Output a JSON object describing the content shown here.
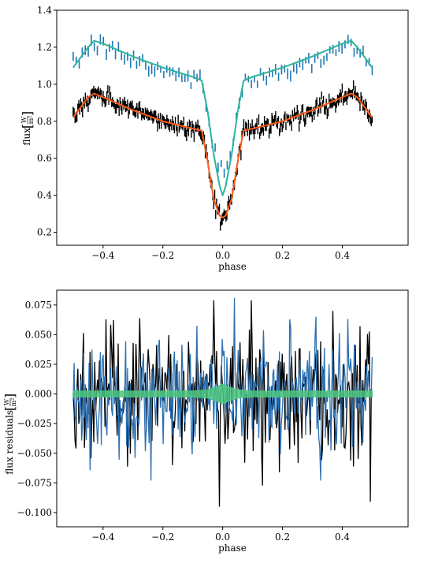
{
  "chart_data": [
    {
      "type": "line",
      "xlabel": "phase",
      "ylabel_text": "flux",
      "ylabel_unit_num": "W",
      "ylabel_unit_den": "m²",
      "xlim": [
        -0.555,
        0.62
      ],
      "ylim": [
        0.13,
        1.4
      ],
      "xticks": [
        -0.4,
        -0.2,
        0.0,
        0.2,
        0.4
      ],
      "xtick_labels": [
        "−0.4",
        "−0.2",
        "0.0",
        "0.2",
        "0.4"
      ],
      "yticks": [
        0.2,
        0.4,
        0.6,
        0.8,
        1.0,
        1.2,
        1.4
      ],
      "ytick_labels": [
        "0.2",
        "0.4",
        "0.6",
        "0.8",
        "1.0",
        "1.2",
        "1.4"
      ],
      "grid": false,
      "series": [
        {
          "role": "observed",
          "color": "#1f77b4",
          "style": "errorbar",
          "model_offset": 0.27,
          "n_points": 100,
          "noise": 0.022
        },
        {
          "role": "model",
          "color": "#2bb59b",
          "style": "line",
          "x": [
            -0.5,
            -0.45,
            -0.43,
            -0.4,
            -0.3,
            -0.2,
            -0.1,
            -0.07,
            -0.05,
            -0.03,
            -0.01,
            0.0,
            0.01,
            0.03,
            0.05,
            0.07,
            0.1,
            0.2,
            0.3,
            0.4,
            0.43,
            0.45,
            0.5
          ],
          "y": [
            1.09,
            1.2,
            1.235,
            1.22,
            1.15,
            1.09,
            1.04,
            1.02,
            0.85,
            0.62,
            0.45,
            0.4,
            0.45,
            0.62,
            0.85,
            1.02,
            1.04,
            1.09,
            1.15,
            1.22,
            1.235,
            1.2,
            1.09
          ]
        },
        {
          "role": "observed",
          "color": "#000000",
          "style": "errorbar",
          "model_offset": 0.0,
          "n_points": 320,
          "noise": 0.022
        },
        {
          "role": "model",
          "color": "#ff5a14",
          "style": "line",
          "x": [
            -0.5,
            -0.45,
            -0.43,
            -0.4,
            -0.3,
            -0.2,
            -0.1,
            -0.07,
            -0.05,
            -0.03,
            -0.01,
            0.0,
            0.01,
            0.03,
            0.05,
            0.07,
            0.1,
            0.2,
            0.3,
            0.4,
            0.43,
            0.45,
            0.5
          ],
          "y": [
            0.82,
            0.93,
            0.95,
            0.93,
            0.86,
            0.8,
            0.76,
            0.75,
            0.58,
            0.38,
            0.29,
            0.28,
            0.29,
            0.38,
            0.58,
            0.75,
            0.76,
            0.8,
            0.86,
            0.93,
            0.95,
            0.93,
            0.82
          ]
        }
      ]
    },
    {
      "type": "line",
      "xlabel": "phase",
      "ylabel_text": "flux residuals",
      "ylabel_unit_num": "W",
      "ylabel_unit_den": "m²",
      "xlim": [
        -0.555,
        0.62
      ],
      "ylim": [
        -0.112,
        0.0875
      ],
      "xticks": [
        -0.4,
        -0.2,
        0.0,
        0.2,
        0.4
      ],
      "xtick_labels": [
        "−0.4",
        "−0.2",
        "0.0",
        "0.2",
        "0.4"
      ],
      "yticks": [
        -0.1,
        -0.075,
        -0.05,
        -0.025,
        0.0,
        0.025,
        0.05,
        0.075
      ],
      "ytick_labels": [
        "−0.100",
        "−0.075",
        "−0.050",
        "−0.025",
        "0.000",
        "0.025",
        "0.050",
        "0.075"
      ],
      "grid": false,
      "series": [
        {
          "role": "residuals",
          "color": "#000000",
          "style": "line",
          "n_points": 320,
          "amplitude": 0.028,
          "extremes": {
            "max": 0.079,
            "min": -0.095
          }
        },
        {
          "role": "residuals",
          "color": "#2c6fb0",
          "style": "line",
          "n_points": 320,
          "amplitude": 0.025,
          "extremes": {
            "max": 0.081,
            "min": -0.073
          }
        },
        {
          "role": "zero-band",
          "color": "#4cc77e",
          "style": "band",
          "x": [
            -0.5,
            -0.1,
            -0.05,
            -0.02,
            0.0,
            0.02,
            0.05,
            0.1,
            0.5
          ],
          "y": [
            0.0,
            0.0,
            0.0,
            0.0,
            0.0,
            0.0,
            0.0,
            0.0,
            0.0
          ],
          "half_width": [
            0.0025,
            0.0025,
            0.0035,
            0.006,
            0.0085,
            0.006,
            0.0035,
            0.0025,
            0.0025
          ]
        }
      ]
    }
  ]
}
